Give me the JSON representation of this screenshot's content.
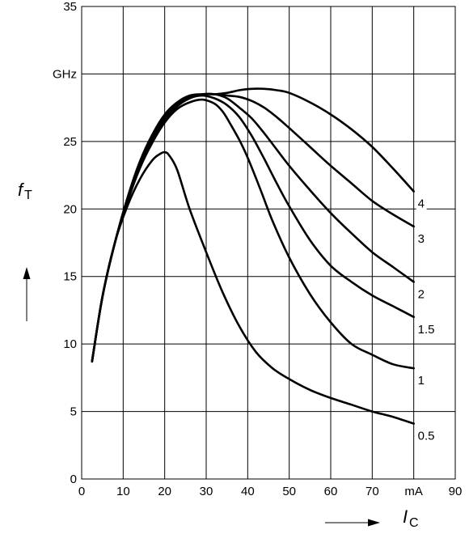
{
  "chart_data": {
    "type": "line",
    "x_axis": {
      "symbol": "I",
      "subscript": "C",
      "unit": "mA",
      "range": [
        0,
        90
      ],
      "ticks": [
        "0",
        "10",
        "20",
        "30",
        "40",
        "50",
        "60",
        "70",
        "mA",
        "90"
      ]
    },
    "y_axis": {
      "symbol": "f",
      "subscript": "T",
      "unit": "GHz",
      "range": [
        0,
        35
      ],
      "ticks": [
        "0",
        "5",
        "10",
        "15",
        "20",
        "25",
        "GHz",
        "35"
      ]
    },
    "grid": true,
    "series": [
      {
        "name": "0.5",
        "x": [
          2.5,
          5,
          8,
          11,
          14,
          17,
          19,
          20,
          21,
          23,
          26,
          30,
          34,
          38,
          42,
          46,
          50,
          55,
          60,
          65,
          70,
          75,
          80
        ],
        "y": [
          8.7,
          13.5,
          17.5,
          20.2,
          22.2,
          23.6,
          24.1,
          24.2,
          24.0,
          22.9,
          20.0,
          16.8,
          13.8,
          11.3,
          9.4,
          8.2,
          7.4,
          6.6,
          6.0,
          5.5,
          5.0,
          4.6,
          4.1
        ]
      },
      {
        "name": "1",
        "x": [
          2.5,
          5,
          8,
          11,
          14,
          17,
          20,
          23,
          26,
          29,
          32,
          34,
          36,
          38,
          40,
          43,
          46,
          50,
          55,
          60,
          65,
          70,
          75,
          80
        ],
        "y": [
          8.7,
          13.5,
          17.5,
          20.5,
          23.0,
          24.9,
          26.4,
          27.4,
          27.9,
          28.1,
          27.8,
          27.2,
          26.2,
          25.1,
          23.8,
          21.5,
          19.1,
          16.4,
          13.7,
          11.6,
          10.0,
          9.2,
          8.5,
          8.2
        ]
      },
      {
        "name": "1.5",
        "x": [
          2.5,
          5,
          8,
          11,
          14,
          17,
          20,
          23,
          26,
          29,
          32,
          35,
          38,
          41,
          44,
          47,
          50,
          55,
          60,
          65,
          70,
          75,
          80
        ],
        "y": [
          8.7,
          13.5,
          17.5,
          20.6,
          23.2,
          25.2,
          26.6,
          27.6,
          28.2,
          28.4,
          28.2,
          27.7,
          26.8,
          25.4,
          23.7,
          21.9,
          20.2,
          17.7,
          15.8,
          14.6,
          13.6,
          12.8,
          12.0
        ]
      },
      {
        "name": "2",
        "x": [
          2.5,
          5,
          8,
          11,
          14,
          17,
          20,
          23,
          26,
          29,
          32,
          35,
          38,
          41,
          44,
          47,
          50,
          55,
          60,
          65,
          70,
          75,
          80
        ],
        "y": [
          8.7,
          13.5,
          17.5,
          20.7,
          23.4,
          25.4,
          26.9,
          27.8,
          28.3,
          28.5,
          28.5,
          28.2,
          27.5,
          26.7,
          25.6,
          24.4,
          23.2,
          21.4,
          19.7,
          18.2,
          16.8,
          15.7,
          14.6
        ]
      },
      {
        "name": "3",
        "x": [
          2.5,
          5,
          8,
          11,
          14,
          17,
          20,
          23,
          26,
          29,
          32,
          35,
          38,
          41,
          44,
          47,
          50,
          55,
          60,
          65,
          70,
          75,
          80
        ],
        "y": [
          8.7,
          13.5,
          17.5,
          20.8,
          23.5,
          25.5,
          27.0,
          27.9,
          28.4,
          28.5,
          28.5,
          28.4,
          28.3,
          28.0,
          27.5,
          26.8,
          26.0,
          24.6,
          23.2,
          21.9,
          20.6,
          19.6,
          18.7
        ]
      },
      {
        "name": "4",
        "x": [
          2.5,
          5,
          8,
          11,
          14,
          17,
          20,
          23,
          26,
          29,
          32,
          35,
          38,
          41,
          44,
          47,
          50,
          55,
          60,
          65,
          70,
          75,
          80
        ],
        "y": [
          8.7,
          13.5,
          17.5,
          20.7,
          23.4,
          25.4,
          26.8,
          27.7,
          28.2,
          28.5,
          28.5,
          28.6,
          28.8,
          28.9,
          28.9,
          28.8,
          28.6,
          27.9,
          27.0,
          25.9,
          24.6,
          23.0,
          21.3
        ]
      }
    ]
  }
}
